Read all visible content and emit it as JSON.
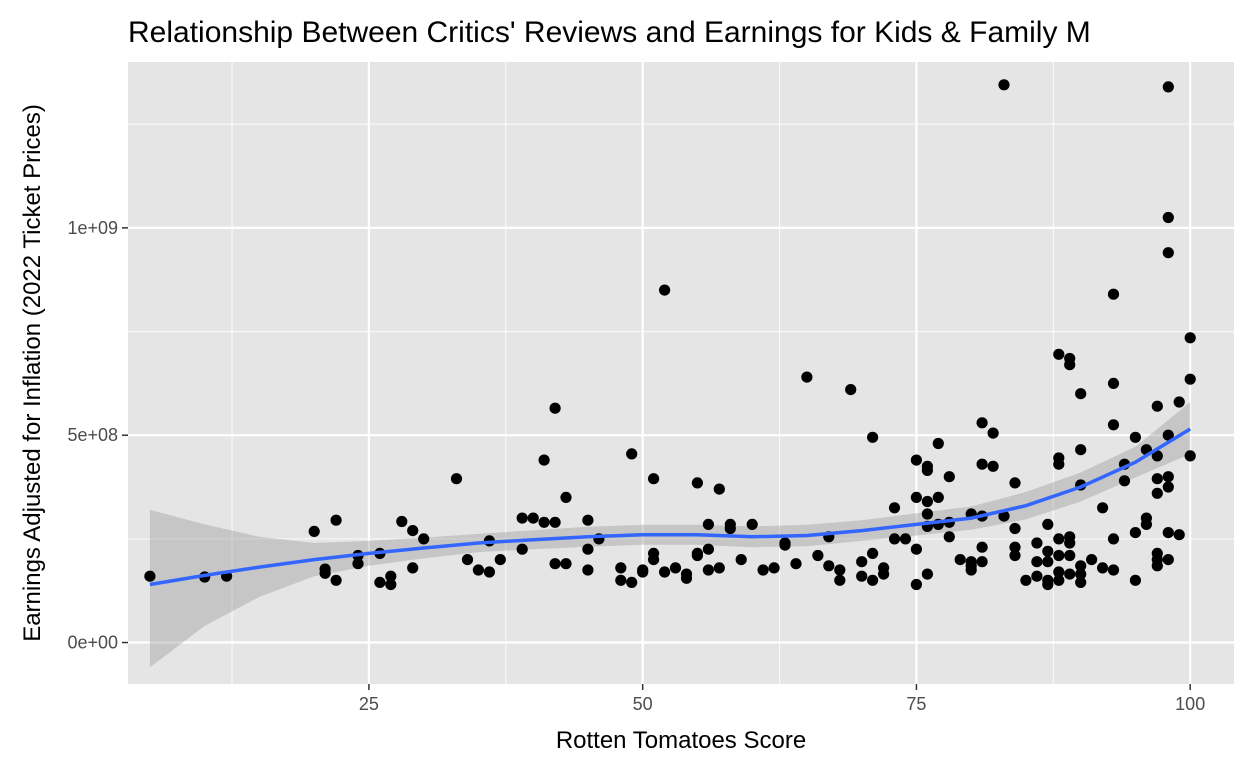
{
  "chart_data": {
    "type": "scatter",
    "title": "Relationship Between Critics' Reviews and Earnings for Kids & Family M",
    "xlabel": "Rotten Tomatoes Score",
    "ylabel": "Earnings Adjusted for Inflation (2022 Ticket Prices)",
    "xlim": [
      3,
      104
    ],
    "ylim": [
      -100000000,
      1400000000
    ],
    "x_ticks": [
      25,
      50,
      75,
      100
    ],
    "x_tick_labels": [
      "25",
      "50",
      "75",
      "100"
    ],
    "y_ticks": [
      0,
      500000000,
      1000000000
    ],
    "y_tick_labels": [
      "0e+00",
      "5e+08",
      "1e+09"
    ],
    "grid": true,
    "legend": "none",
    "colors": {
      "panel": "#e5e5e5",
      "grid": "#ffffff",
      "points": "#000000",
      "smooth_line": "#3366ff",
      "ribbon": "#999999"
    },
    "series": [
      {
        "type": "scatter",
        "x": [
          5,
          10,
          12,
          20,
          21,
          21,
          22,
          22,
          24,
          24,
          26,
          26,
          27,
          27,
          28,
          29,
          29,
          30,
          33,
          34,
          35,
          36,
          36,
          37,
          39,
          39,
          40,
          41,
          41,
          42,
          42,
          42,
          43,
          43,
          45,
          45,
          45,
          46,
          48,
          48,
          49,
          49,
          50,
          50,
          51,
          51,
          51,
          52,
          52,
          53,
          54,
          54,
          55,
          55,
          55,
          56,
          56,
          56,
          57,
          57,
          58,
          58,
          59,
          60,
          61,
          62,
          63,
          63,
          64,
          65,
          66,
          67,
          67,
          68,
          68,
          69,
          70,
          70,
          71,
          71,
          71,
          72,
          72,
          73,
          73,
          74,
          75,
          75,
          75,
          75,
          76,
          76,
          76,
          76,
          76,
          76,
          77,
          77,
          77,
          78,
          78,
          78,
          79,
          80,
          80,
          80,
          80,
          81,
          81,
          81,
          81,
          81,
          82,
          82,
          83,
          83,
          84,
          84,
          84,
          84,
          85,
          86,
          86,
          86,
          87,
          87,
          87,
          87,
          87,
          88,
          88,
          88,
          88,
          88,
          88,
          88,
          89,
          89,
          89,
          89,
          89,
          89,
          90,
          90,
          90,
          90,
          90,
          90,
          91,
          92,
          92,
          93,
          93,
          93,
          93,
          93,
          94,
          94,
          95,
          95,
          95,
          96,
          96,
          96,
          97,
          97,
          97,
          97,
          97,
          97,
          97,
          98,
          98,
          98,
          98,
          98,
          98,
          98,
          98,
          99,
          99,
          100,
          100,
          100
        ],
        "y": [
          160000000,
          158000000,
          160000000,
          268000000,
          177000000,
          167000000,
          295000000,
          150000000,
          210000000,
          190000000,
          215000000,
          145000000,
          160000000,
          140000000,
          292000000,
          270000000,
          180000000,
          250000000,
          395000000,
          200000000,
          175000000,
          245000000,
          170000000,
          200000000,
          300000000,
          225000000,
          300000000,
          440000000,
          290000000,
          565000000,
          290000000,
          190000000,
          350000000,
          190000000,
          295000000,
          225000000,
          175000000,
          250000000,
          180000000,
          150000000,
          455000000,
          145000000,
          175000000,
          170000000,
          215000000,
          200000000,
          395000000,
          850000000,
          170000000,
          180000000,
          165000000,
          155000000,
          385000000,
          215000000,
          210000000,
          285000000,
          225000000,
          175000000,
          370000000,
          180000000,
          285000000,
          275000000,
          200000000,
          285000000,
          175000000,
          180000000,
          240000000,
          235000000,
          190000000,
          640000000,
          210000000,
          255000000,
          185000000,
          175000000,
          150000000,
          610000000,
          195000000,
          160000000,
          495000000,
          215000000,
          150000000,
          180000000,
          165000000,
          325000000,
          250000000,
          250000000,
          440000000,
          350000000,
          225000000,
          140000000,
          425000000,
          415000000,
          340000000,
          310000000,
          280000000,
          165000000,
          480000000,
          350000000,
          285000000,
          400000000,
          290000000,
          255000000,
          200000000,
          310000000,
          195000000,
          185000000,
          175000000,
          530000000,
          430000000,
          305000000,
          195000000,
          230000000,
          505000000,
          425000000,
          1345000000,
          305000000,
          385000000,
          275000000,
          210000000,
          230000000,
          150000000,
          240000000,
          195000000,
          160000000,
          285000000,
          220000000,
          195000000,
          150000000,
          140000000,
          695000000,
          445000000,
          430000000,
          250000000,
          210000000,
          170000000,
          150000000,
          685000000,
          670000000,
          255000000,
          240000000,
          210000000,
          165000000,
          600000000,
          465000000,
          380000000,
          185000000,
          165000000,
          145000000,
          200000000,
          325000000,
          180000000,
          840000000,
          625000000,
          525000000,
          250000000,
          175000000,
          430000000,
          390000000,
          495000000,
          265000000,
          150000000,
          465000000,
          300000000,
          285000000,
          570000000,
          450000000,
          395000000,
          360000000,
          215000000,
          200000000,
          185000000,
          1340000000,
          1025000000,
          940000000,
          500000000,
          400000000,
          375000000,
          265000000,
          200000000,
          580000000,
          260000000,
          735000000,
          635000000,
          450000000
        ]
      },
      {
        "type": "smooth",
        "name": "",
        "x": [
          5,
          10,
          15,
          20,
          25,
          30,
          35,
          40,
          45,
          50,
          55,
          60,
          65,
          70,
          75,
          80,
          85,
          90,
          95,
          100
        ],
        "y": [
          140000000,
          162000000,
          182000000,
          200000000,
          215000000,
          228000000,
          240000000,
          248000000,
          255000000,
          260000000,
          260000000,
          255000000,
          258000000,
          270000000,
          285000000,
          300000000,
          330000000,
          375000000,
          435000000,
          515000000
        ],
        "ymin": [
          -60000000,
          40000000,
          110000000,
          160000000,
          185000000,
          203000000,
          218000000,
          225000000,
          231000000,
          236000000,
          236000000,
          230000000,
          232000000,
          245000000,
          258000000,
          272000000,
          297000000,
          340000000,
          398000000,
          455000000
        ],
        "ymax": [
          320000000,
          285000000,
          255000000,
          240000000,
          245000000,
          253000000,
          262000000,
          271000000,
          279000000,
          284000000,
          284000000,
          280000000,
          284000000,
          295000000,
          312000000,
          328000000,
          363000000,
          410000000,
          472000000,
          580000000
        ]
      }
    ]
  }
}
